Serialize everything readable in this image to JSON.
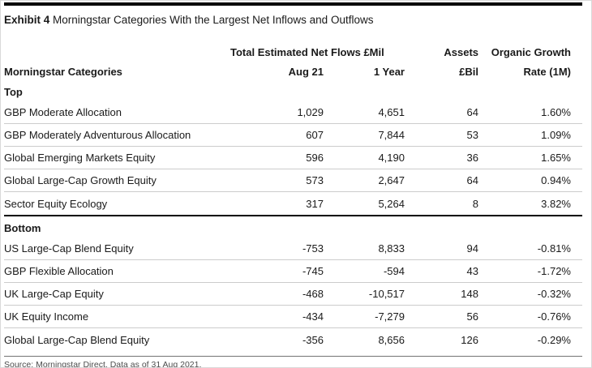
{
  "exhibit": {
    "label": "Exhibit 4",
    "title": "Morningstar Categories With the Largest Net Inflows and Outflows"
  },
  "table": {
    "group_header": "Total Estimated Net Flows £Mil",
    "headers": {
      "category": "Morningstar Categories",
      "aug21": "Aug 21",
      "one_year": "1 Year",
      "assets_line1": "Assets",
      "assets_line2": "£Bil",
      "growth_line1": "Organic Growth",
      "growth_line2": "Rate (1M)"
    },
    "sections": [
      {
        "label": "Top",
        "rows": [
          {
            "category": "GBP Moderate Allocation",
            "aug21": "1,029",
            "one_year": "4,651",
            "assets": "64",
            "rate": "1.60%"
          },
          {
            "category": "GBP Moderately Adventurous Allocation",
            "aug21": "607",
            "one_year": "7,844",
            "assets": "53",
            "rate": "1.09%"
          },
          {
            "category": "Global Emerging Markets Equity",
            "aug21": "596",
            "one_year": "4,190",
            "assets": "36",
            "rate": "1.65%"
          },
          {
            "category": "Global Large-Cap Growth Equity",
            "aug21": "573",
            "one_year": "2,647",
            "assets": "64",
            "rate": "0.94%"
          },
          {
            "category": "Sector Equity Ecology",
            "aug21": "317",
            "one_year": "5,264",
            "assets": "8",
            "rate": "3.82%"
          }
        ]
      },
      {
        "label": "Bottom",
        "rows": [
          {
            "category": "US Large-Cap Blend Equity",
            "aug21": "-753",
            "one_year": "8,833",
            "assets": "94",
            "rate": "-0.81%"
          },
          {
            "category": "GBP Flexible Allocation",
            "aug21": "-745",
            "one_year": "-594",
            "assets": "43",
            "rate": "-1.72%"
          },
          {
            "category": "UK Large-Cap Equity",
            "aug21": "-468",
            "one_year": "-10,517",
            "assets": "148",
            "rate": "-0.32%"
          },
          {
            "category": "UK Equity Income",
            "aug21": "-434",
            "one_year": "-7,279",
            "assets": "56",
            "rate": "-0.76%"
          },
          {
            "category": "Global Large-Cap Blend Equity",
            "aug21": "-356",
            "one_year": "8,656",
            "assets": "126",
            "rate": "-0.29%"
          }
        ]
      }
    ]
  },
  "footer": {
    "source": "Source: Morningstar Direct. Data as of 31 Aug 2021."
  },
  "colors": {
    "top_bar": "#000000",
    "section_divider": "#000000",
    "row_divider": "#cccccc",
    "source_divider": "#737373",
    "text": "#1a1a1a",
    "source_text": "#4d4d4d"
  },
  "chart_data": {
    "type": "table",
    "title": "Exhibit 4 Morningstar Categories With the Largest Net Inflows and Outflows",
    "columns": [
      "Morningstar Categories",
      "Total Estimated Net Flows £Mil — Aug 21",
      "Total Estimated Net Flows £Mil — 1 Year",
      "Assets £Bil",
      "Organic Growth Rate (1M)"
    ],
    "sections": [
      {
        "name": "Top",
        "rows": [
          [
            "GBP Moderate Allocation",
            1029,
            4651,
            64,
            "1.60%"
          ],
          [
            "GBP Moderately Adventurous Allocation",
            607,
            7844,
            53,
            "1.09%"
          ],
          [
            "Global Emerging Markets Equity",
            596,
            4190,
            36,
            "1.65%"
          ],
          [
            "Global Large-Cap Growth Equity",
            573,
            2647,
            64,
            "0.94%"
          ],
          [
            "Sector Equity Ecology",
            317,
            5264,
            8,
            "3.82%"
          ]
        ]
      },
      {
        "name": "Bottom",
        "rows": [
          [
            "US Large-Cap Blend Equity",
            -753,
            8833,
            94,
            "-0.81%"
          ],
          [
            "GBP Flexible Allocation",
            -745,
            -594,
            43,
            "-1.72%"
          ],
          [
            "UK Large-Cap Equity",
            -468,
            -10517,
            148,
            "-0.32%"
          ],
          [
            "UK Equity Income",
            -434,
            -7279,
            56,
            "-0.76%"
          ],
          [
            "Global Large-Cap Blend Equity",
            -356,
            8656,
            126,
            "-0.29%"
          ]
        ]
      }
    ],
    "source_note": "Source: Morningstar Direct. Data as of 31 Aug 2021."
  }
}
